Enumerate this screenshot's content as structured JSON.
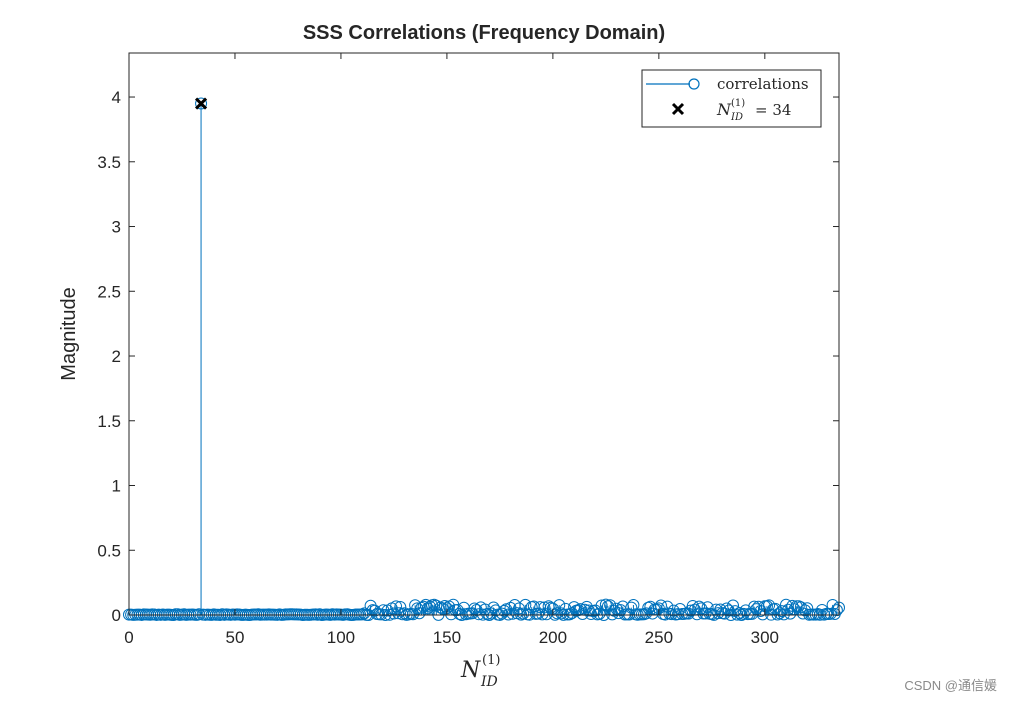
{
  "chart_data": {
    "type": "stem",
    "title": "SSS Correlations (Frequency Domain)",
    "xlabel": "N_ID^(1)",
    "ylabel": "Magnitude",
    "xlim": [
      0,
      335
    ],
    "ylim": [
      0,
      4.34
    ],
    "xticks": [
      0,
      50,
      100,
      150,
      200,
      250,
      300
    ],
    "yticks": [
      0,
      0.5,
      1,
      1.5,
      2,
      2.5,
      3,
      3.5,
      4
    ],
    "grid": false,
    "legend_position": "northeast",
    "series": [
      {
        "name": "correlations",
        "style": "stem-circle",
        "color": "#0072BD",
        "x_range": [
          0,
          335
        ],
        "description": "Near-zero (~0.0) for indices 0-110 except peak at 34; small noise values ~0.0-0.08 for indices 111-335",
        "peak": {
          "x": 34,
          "y": 3.95
        },
        "noise_level_low": 0.0,
        "noise_level_high": 0.08,
        "noise_start_index": 111
      },
      {
        "name": "N_ID^(1) = 34",
        "style": "x-marker",
        "color": "#000000",
        "x": [
          34
        ],
        "values": [
          3.95
        ]
      }
    ],
    "legend": [
      {
        "label": "correlations",
        "marker": "line-circle",
        "color": "#0072BD"
      },
      {
        "label_main": "N",
        "label_sup": "(1)",
        "label_sub": "ID",
        "label_rest": " = 34",
        "marker": "x",
        "color": "#000000"
      }
    ]
  },
  "text": {
    "title": "SSS Correlations (Frequency Domain)",
    "ylabel": "Magnitude",
    "xlabel_main": "N",
    "xlabel_sup": "(1)",
    "xlabel_sub": "ID",
    "legend_1": "correlations",
    "legend_2_main": "N",
    "legend_2_sup": "(1)",
    "legend_2_sub": "ID",
    "legend_2_rest": "= 34",
    "watermark": "CSDN @通信媛"
  }
}
